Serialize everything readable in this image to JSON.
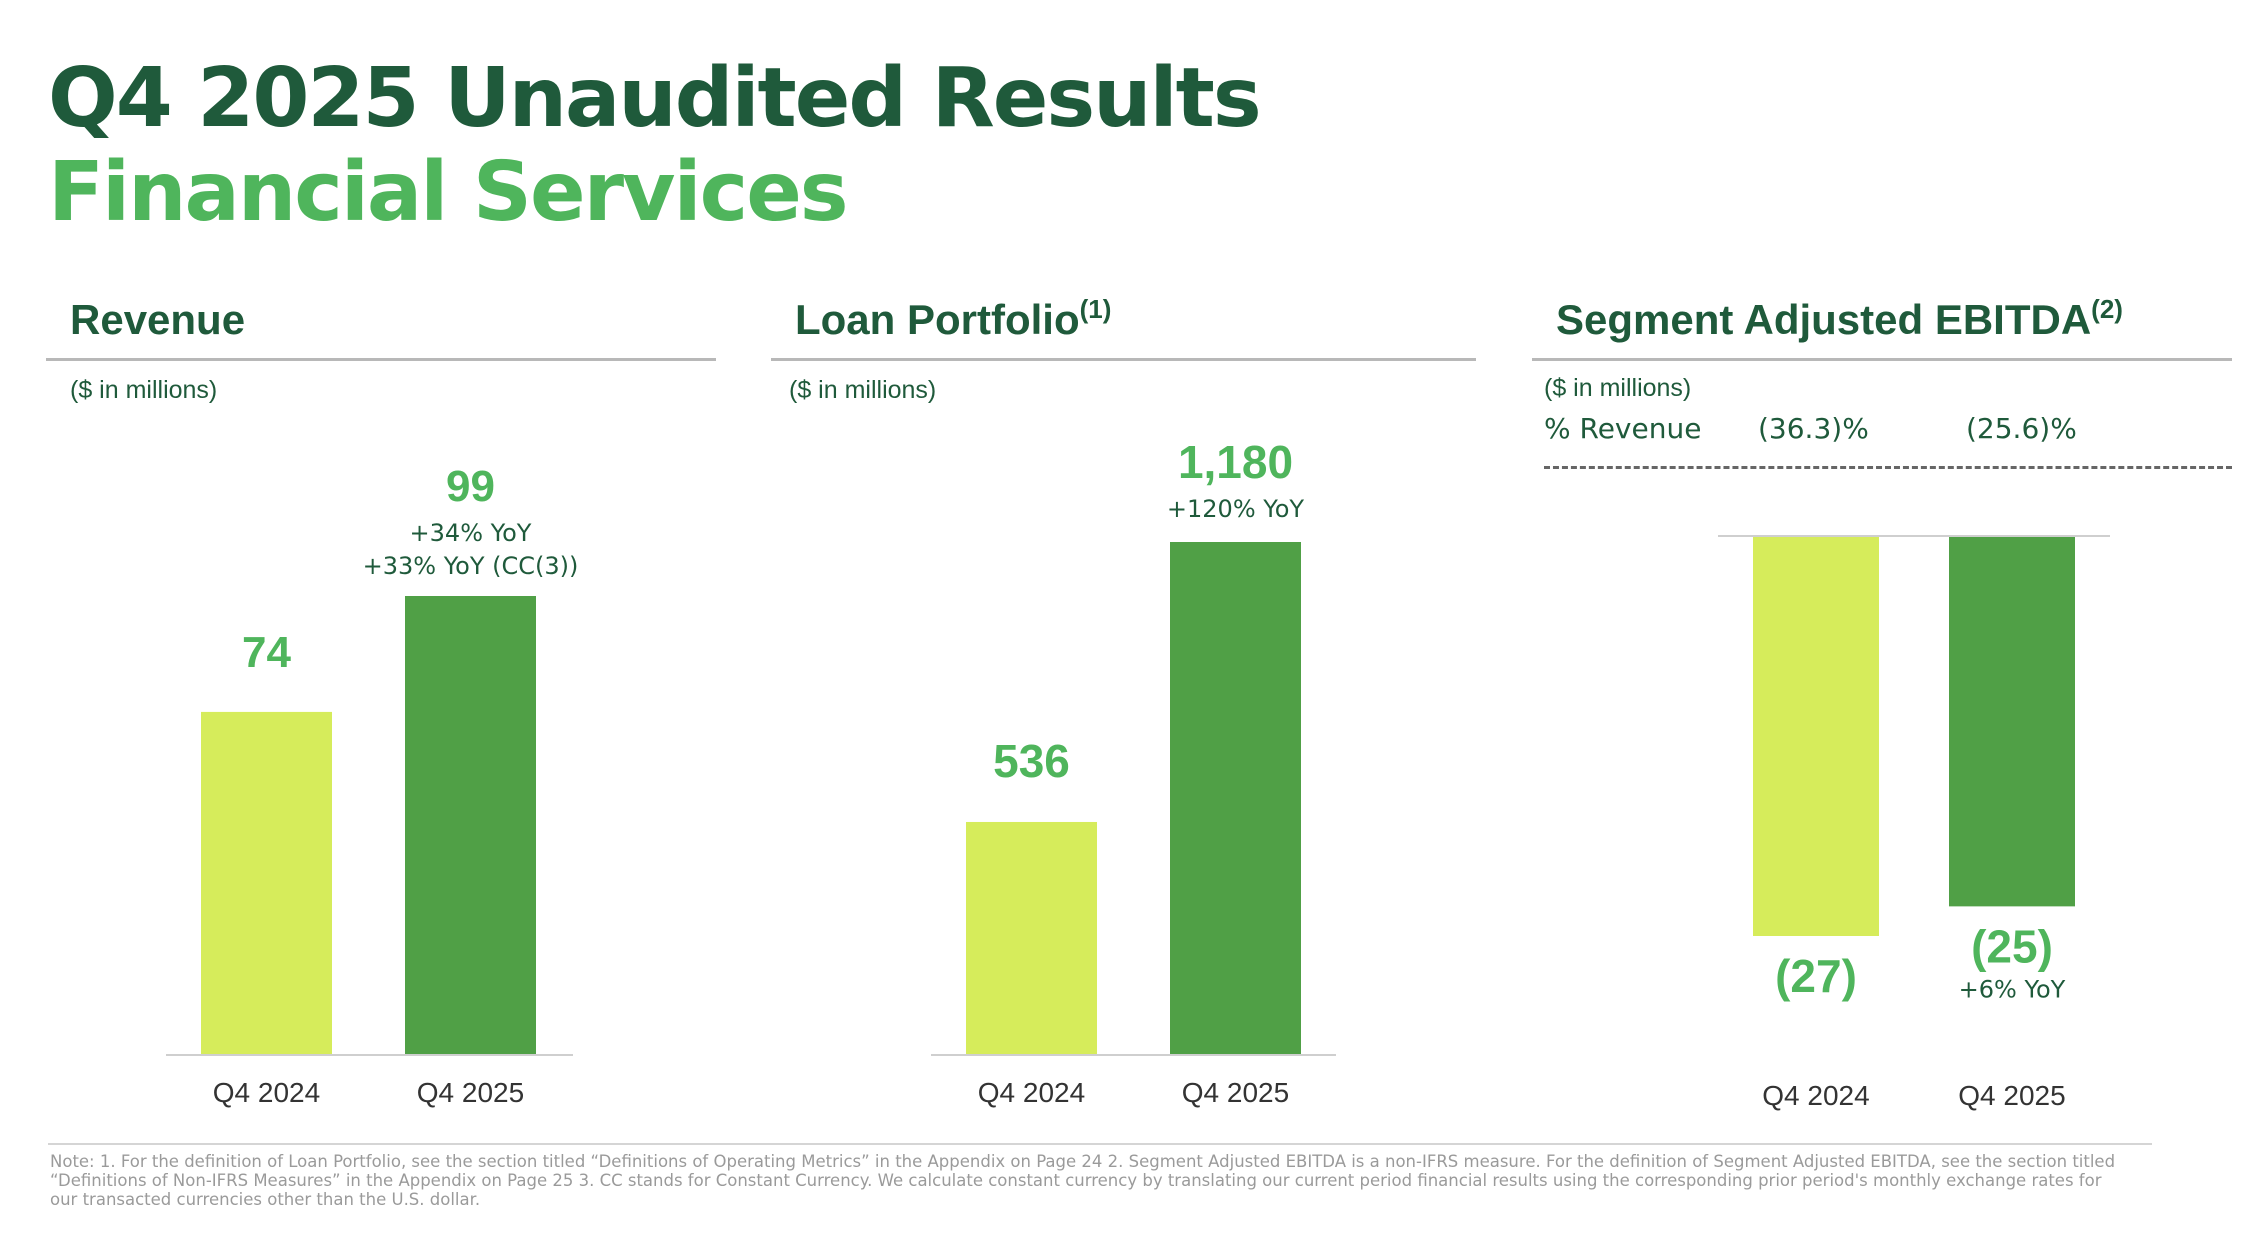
{
  "header": {
    "title": "Q4 2025 Unaudited Results",
    "subtitle": "Financial Services"
  },
  "colors": {
    "dark_green": "#1f5a3b",
    "accent_green": "#4fb55c",
    "bar_q4_2024": "#d6ec5b",
    "bar_q4_2025": "#50a046"
  },
  "panels": {
    "revenue": {
      "title": "Revenue",
      "sup": "",
      "unit": "($ in millions)"
    },
    "loan": {
      "title": "Loan Portfolio",
      "sup": "(1)",
      "unit": "($ in millions)"
    },
    "ebitda": {
      "title": "Segment Adjusted EBITDA",
      "sup": "(2)",
      "unit": "($ in millions)",
      "pct_label": "% Revenue",
      "pct_q4_2024": "(36.3)%",
      "pct_q4_2025": "(25.6)%"
    }
  },
  "chart_data": [
    {
      "type": "bar",
      "title": "Revenue",
      "categories": [
        "Q4 2024",
        "Q4 2025"
      ],
      "values": [
        74,
        99
      ],
      "value_labels": [
        "74",
        "99"
      ],
      "annotations": [
        "+34% YoY",
        "+33% YoY (CC(3))"
      ],
      "ylim": [
        0,
        99
      ]
    },
    {
      "type": "bar",
      "title": "Loan Portfolio(1)",
      "categories": [
        "Q4 2024",
        "Q4 2025"
      ],
      "values": [
        536,
        1180
      ],
      "value_labels": [
        "536",
        "1,180"
      ],
      "annotations": [
        "+120% YoY"
      ],
      "ylim": [
        0,
        1180
      ]
    },
    {
      "type": "bar",
      "title": "Segment Adjusted EBITDA(2)",
      "categories": [
        "Q4 2024",
        "Q4 2025"
      ],
      "values": [
        -27,
        -25
      ],
      "value_labels": [
        "(27)",
        "(25)"
      ],
      "annotations": [
        "+6% YoY"
      ],
      "ylim": [
        -27,
        0
      ]
    }
  ],
  "footnote": "Note: 1. For the definition of Loan Portfolio, see the section titled “Definitions of Operating Metrics” in the Appendix on Page 24 2. Segment Adjusted EBITDA is a non-IFRS measure. For the definition of Segment Adjusted EBITDA, see the section titled “Definitions of Non-IFRS Measures” in the Appendix on Page 25 3. CC stands for Constant Currency. We calculate constant currency by translating our current period financial results using the corresponding prior period's monthly exchange rates for our transacted currencies other than the U.S. dollar."
}
